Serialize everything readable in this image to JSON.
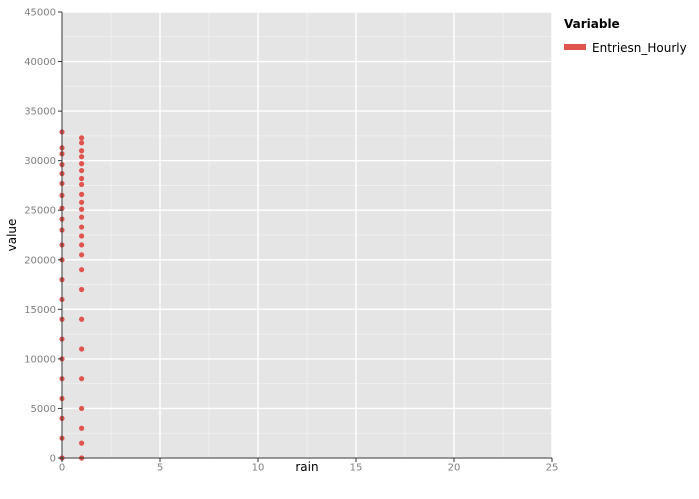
{
  "chart_data": {
    "type": "scatter",
    "xlabel": "rain",
    "ylabel": "value",
    "xlim": [
      0,
      25
    ],
    "ylim": [
      0,
      45000
    ],
    "x_ticks": [
      0,
      5,
      10,
      15,
      20,
      25
    ],
    "y_ticks": [
      0,
      5000,
      10000,
      15000,
      20000,
      25000,
      30000,
      35000,
      40000,
      45000
    ],
    "grid": true,
    "legend": {
      "title": "Variable",
      "placement": "right",
      "entries": [
        "Entriesn_Hourly"
      ]
    },
    "colors": {
      "series": "#E0544E",
      "panel": "#E5E5E5",
      "grid": "#FFFFFF"
    },
    "series": [
      {
        "name": "Entriesn_Hourly",
        "x": [
          0,
          0,
          0,
          0,
          0,
          0,
          0,
          0,
          0,
          0,
          0,
          0,
          0,
          0,
          0,
          0,
          0,
          0,
          0,
          0,
          0,
          0,
          1,
          1,
          1,
          1,
          1,
          1,
          1,
          1,
          1,
          1,
          1,
          1,
          1,
          1,
          1,
          1,
          1,
          1,
          1,
          1,
          1,
          1,
          1,
          1,
          1
        ],
        "y": [
          32900,
          31300,
          30700,
          29600,
          28700,
          27700,
          26500,
          25200,
          24100,
          23000,
          21500,
          20000,
          18000,
          16000,
          14000,
          12000,
          10000,
          8000,
          6000,
          4000,
          2000,
          0,
          32300,
          31800,
          31000,
          30400,
          29700,
          29000,
          28200,
          27600,
          26600,
          25800,
          25100,
          24300,
          23300,
          22400,
          21500,
          20500,
          19000,
          17000,
          14000,
          11000,
          8000,
          5000,
          3000,
          1500,
          0
        ]
      }
    ]
  }
}
